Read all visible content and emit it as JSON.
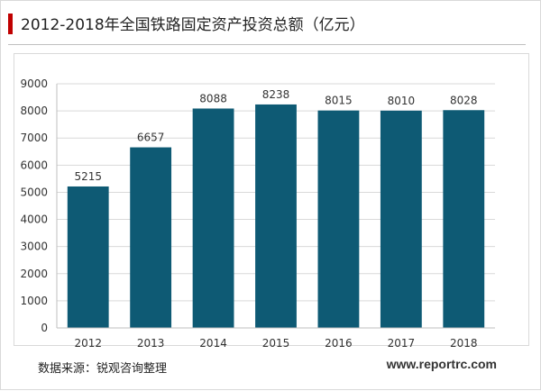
{
  "title": "2012-2018年全国铁路固定资产投资总额（亿元）",
  "source": "数据来源：锐观咨询整理",
  "website": "www.reportrc.com",
  "colors": {
    "bar": "#0e5a74",
    "accent": "#c00000",
    "grid": "#d9d9d9"
  },
  "chart_data": {
    "type": "bar",
    "categories": [
      "2012",
      "2013",
      "2014",
      "2015",
      "2016",
      "2017",
      "2018"
    ],
    "values": [
      5215,
      6657,
      8088,
      8238,
      8015,
      8010,
      8028
    ],
    "data_labels": [
      "5215",
      "6657",
      "8088",
      "8238",
      "8015",
      "8010",
      "8028"
    ],
    "ylim": [
      0,
      9000
    ],
    "yticks": [
      0,
      1000,
      2000,
      3000,
      4000,
      5000,
      6000,
      7000,
      8000,
      9000
    ],
    "ytick_labels": [
      "0",
      "1000",
      "2000",
      "3000",
      "4000",
      "5000",
      "6000",
      "7000",
      "8000",
      "9000"
    ],
    "grid": true,
    "legend": "none"
  }
}
